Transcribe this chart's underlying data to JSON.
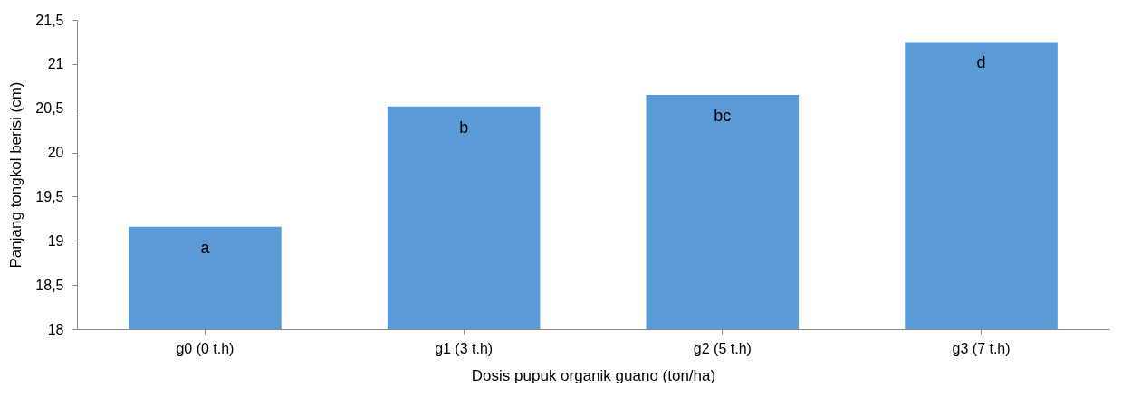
{
  "chart_data": {
    "type": "bar",
    "xlabel": "Dosis pupuk organik guano (ton/ha)",
    "ylabel": "Panjang tongkol berisi (cm)",
    "categories": [
      "g0 (0 t.h)",
      "g1 (3 t.h)",
      "g2 (5 t.h)",
      "g3 (7 t.h)"
    ],
    "values": [
      19.16,
      20.52,
      20.65,
      21.25
    ],
    "color": "#5b9bd5",
    "ylim": [
      18,
      21.5
    ],
    "yticks": [
      {
        "value": 18,
        "label": "18"
      },
      {
        "value": 18.5,
        "label": "18,5"
      },
      {
        "value": 19,
        "label": "19"
      },
      {
        "value": 19.5,
        "label": "19,5"
      },
      {
        "value": 20,
        "label": "20"
      },
      {
        "value": 20.5,
        "label": "20,5"
      },
      {
        "value": 21,
        "label": "21"
      },
      {
        "value": 21.5,
        "label": "21,5"
      }
    ],
    "annotations": [
      {
        "text": "a",
        "x": "g0 (0 t.h)",
        "y": 19.16
      },
      {
        "text": "b",
        "x": "g1 (3 t.h)",
        "y": 20.52
      },
      {
        "text": "bc",
        "x": "g2 (5 t.h)",
        "y": 20.65
      },
      {
        "text": "d",
        "x": "g3 (7 t.h)",
        "y": 21.25
      }
    ],
    "grid": false
  }
}
